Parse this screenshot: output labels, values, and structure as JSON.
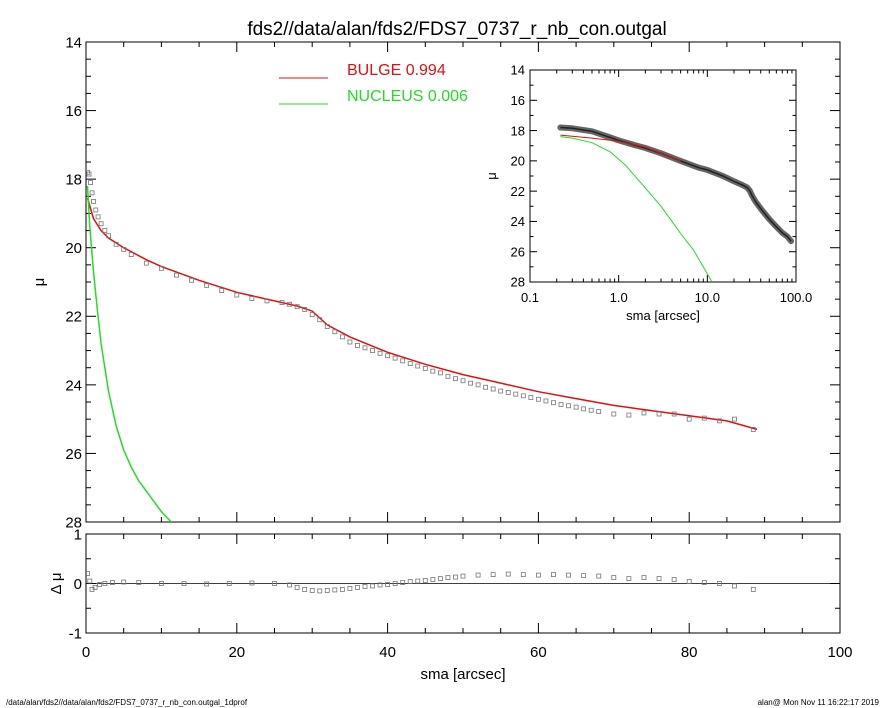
{
  "chart_data": [
    {
      "panel": "main",
      "type": "line",
      "title": "fds2//data/alan/fds2/FDS7_0737_r_nb_con.outgal",
      "xlabel": "",
      "ylabel": "μ",
      "xlim": [
        0,
        100
      ],
      "ylim": [
        28,
        14
      ],
      "y_inverted": true,
      "xticks": [
        "",
        "",
        "",
        "",
        "",
        ""
      ],
      "yticks": [
        "14",
        "16",
        "18",
        "20",
        "22",
        "24",
        "26",
        "28"
      ],
      "legend": [
        {
          "label": "BULGE  0.994",
          "color": "#e01010"
        },
        {
          "label": "NUCLEUS  0.006",
          "color": "#22dd22"
        }
      ],
      "series": [
        {
          "name": "BULGE  0.994",
          "color": "#e01010",
          "style": "line",
          "x": [
            0.2,
            1,
            2,
            3,
            5,
            8,
            10,
            15,
            20,
            25,
            28,
            30,
            32,
            35,
            40,
            45,
            50,
            55,
            60,
            65,
            70,
            75,
            80,
            85,
            89
          ],
          "y": [
            18.55,
            19.15,
            19.5,
            19.72,
            20.0,
            20.35,
            20.55,
            20.95,
            21.3,
            21.55,
            21.7,
            21.85,
            22.25,
            22.6,
            23.05,
            23.4,
            23.7,
            23.95,
            24.2,
            24.4,
            24.6,
            24.75,
            24.9,
            25.05,
            25.3
          ]
        },
        {
          "name": "NUCLEUS  0.006",
          "color": "#22dd22",
          "style": "line",
          "x": [
            0.2,
            0.5,
            1,
            1.5,
            2,
            3,
            4,
            5,
            6,
            7,
            8,
            9,
            10,
            11.3
          ],
          "y": [
            18.2,
            19.4,
            20.7,
            21.8,
            22.8,
            24.2,
            25.2,
            25.9,
            26.4,
            26.8,
            27.1,
            27.4,
            27.7,
            28.0
          ]
        },
        {
          "name": "",
          "color": "#777777",
          "style": "markers",
          "x": [
            0.2,
            0.4,
            0.6,
            0.8,
            1.0,
            1.3,
            1.6,
            2.0,
            2.5,
            3,
            4,
            5,
            6,
            8,
            10,
            12,
            14,
            16,
            18,
            20,
            22,
            24,
            26,
            27,
            28,
            29,
            30,
            31,
            32,
            33,
            34,
            35,
            36,
            37,
            38,
            39,
            40,
            41,
            42,
            43,
            44,
            45,
            46,
            47,
            48,
            49,
            50,
            51,
            52,
            53,
            54,
            55,
            56,
            57,
            58,
            59,
            60,
            61,
            62,
            63,
            64,
            65,
            66,
            67,
            68,
            70,
            72,
            74,
            76,
            78,
            80,
            82,
            84,
            86,
            88.5
          ],
          "y": [
            17.8,
            17.85,
            18.1,
            18.4,
            18.65,
            18.9,
            19.1,
            19.3,
            19.5,
            19.65,
            19.9,
            20.05,
            20.2,
            20.45,
            20.6,
            20.8,
            20.95,
            21.1,
            21.25,
            21.38,
            21.48,
            21.55,
            21.6,
            21.65,
            21.72,
            21.8,
            21.95,
            22.1,
            22.3,
            22.45,
            22.6,
            22.75,
            22.85,
            22.92,
            23.0,
            23.08,
            23.15,
            23.22,
            23.3,
            23.38,
            23.45,
            23.52,
            23.6,
            23.65,
            23.75,
            23.82,
            23.88,
            23.95,
            24.0,
            24.07,
            24.12,
            24.18,
            24.22,
            24.27,
            24.32,
            24.37,
            24.42,
            24.47,
            24.52,
            24.57,
            24.61,
            24.65,
            24.7,
            24.74,
            24.78,
            24.85,
            24.88,
            24.82,
            24.85,
            24.85,
            25.0,
            24.97,
            25.05,
            25.0,
            25.3
          ]
        }
      ]
    },
    {
      "panel": "residual",
      "type": "scatter",
      "xlabel": "sma [arcsec]",
      "ylabel": "Δ μ",
      "xlim": [
        0,
        100
      ],
      "ylim": [
        -1,
        1
      ],
      "xticks": [
        "0",
        "20",
        "40",
        "60",
        "80",
        "100"
      ],
      "yticks": [
        "-1",
        "0",
        "1"
      ],
      "reference_line": 0,
      "series": [
        {
          "name": "",
          "color": "#777777",
          "style": "markers",
          "x": [
            0.2,
            0.5,
            0.8,
            1.2,
            1.8,
            2.5,
            3.5,
            5,
            7,
            10,
            13,
            16,
            19,
            22,
            25,
            27,
            28,
            29,
            30,
            31,
            32,
            33,
            34,
            35,
            36,
            37,
            38,
            39,
            40,
            41,
            42,
            43,
            44,
            45,
            46,
            47,
            48,
            49,
            50,
            52,
            54,
            56,
            58,
            60,
            62,
            64,
            66,
            68,
            70,
            72,
            74,
            76,
            78,
            80,
            82,
            84,
            86,
            88.5
          ],
          "y": [
            0.2,
            0.05,
            -0.12,
            -0.08,
            -0.02,
            0.0,
            0.02,
            0.03,
            0.02,
            0.0,
            0.0,
            -0.01,
            0.0,
            0.01,
            0.0,
            -0.03,
            -0.08,
            -0.12,
            -0.14,
            -0.15,
            -0.14,
            -0.13,
            -0.12,
            -0.1,
            -0.08,
            -0.06,
            -0.05,
            -0.03,
            -0.02,
            0.0,
            0.02,
            0.04,
            0.05,
            0.06,
            0.08,
            0.1,
            0.12,
            0.13,
            0.15,
            0.17,
            0.18,
            0.19,
            0.18,
            0.17,
            0.18,
            0.17,
            0.16,
            0.15,
            0.12,
            0.1,
            0.12,
            0.1,
            0.08,
            0.04,
            0.02,
            0.0,
            -0.05,
            -0.12
          ]
        }
      ]
    },
    {
      "panel": "inset",
      "type": "line",
      "xlabel": "sma [arcsec]",
      "ylabel": "μ",
      "xscale": "log",
      "xlim": [
        0.1,
        100
      ],
      "ylim": [
        28,
        14
      ],
      "y_inverted": true,
      "xticks": [
        "0.1",
        "1.0",
        "10.0",
        "100.0"
      ],
      "yticks": [
        "14",
        "16",
        "18",
        "20",
        "22",
        "24",
        "26",
        "28"
      ],
      "series": [
        {
          "name": "",
          "color": "#555555",
          "style": "thick",
          "x": [
            0.22,
            0.3,
            0.5,
            0.8,
            1.0,
            1.5,
            2,
            3,
            5,
            8,
            10,
            15,
            20,
            25,
            28,
            30,
            32,
            35,
            40,
            50,
            60,
            70,
            80,
            88
          ],
          "y": [
            17.8,
            17.85,
            18.05,
            18.45,
            18.65,
            18.95,
            19.15,
            19.5,
            20.0,
            20.45,
            20.6,
            21.0,
            21.35,
            21.6,
            21.75,
            21.95,
            22.3,
            22.7,
            23.15,
            23.85,
            24.35,
            24.75,
            25.0,
            25.3
          ]
        },
        {
          "name": "",
          "color": "#e01010",
          "style": "line",
          "x": [
            0.22,
            0.5,
            1,
            2,
            3,
            5
          ],
          "y": [
            18.3,
            18.5,
            18.7,
            19.1,
            19.5,
            20.0
          ]
        },
        {
          "name": "",
          "color": "#22dd22",
          "style": "line",
          "x": [
            0.22,
            0.3,
            0.5,
            0.8,
            1.2,
            2,
            3,
            4,
            5,
            7,
            9,
            11.3
          ],
          "y": [
            18.4,
            18.5,
            18.8,
            19.4,
            20.3,
            21.8,
            23.0,
            24.0,
            24.8,
            25.9,
            27.0,
            28.0
          ]
        }
      ]
    }
  ],
  "footer": {
    "left": "/data/alan/fds2//data/alan/fds2/FDS7_0737_r_nb_con.outgal_1dprof",
    "right": "alan@  Mon Nov 11 16:22:17 2019"
  }
}
